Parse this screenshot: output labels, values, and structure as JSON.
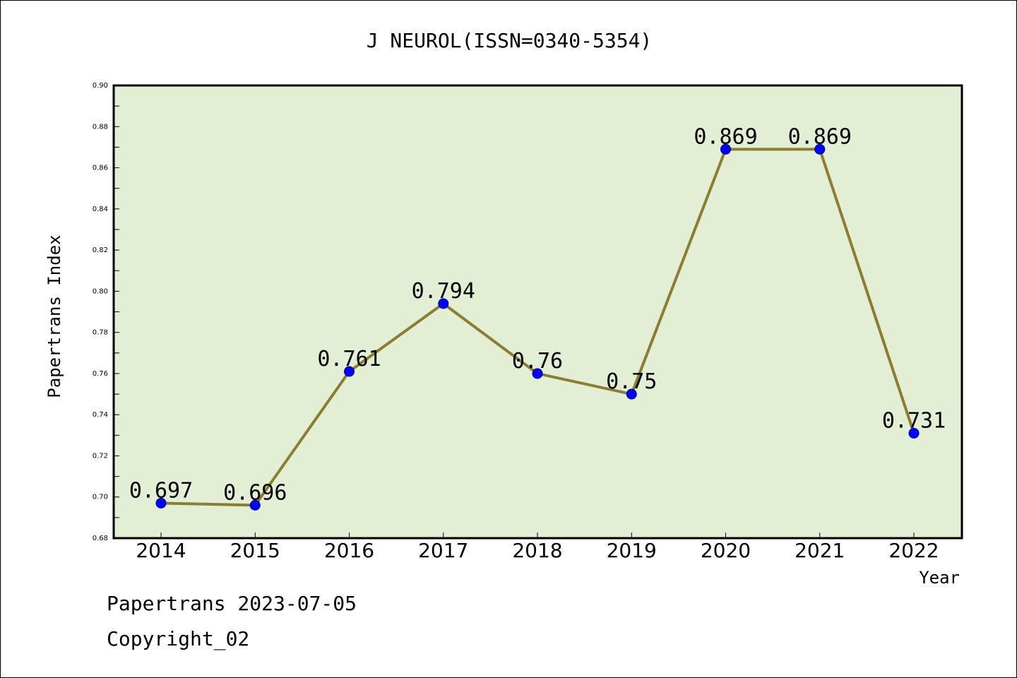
{
  "chart_data": {
    "type": "line",
    "title": "J NEUROL(ISSN=0340-5354)",
    "xlabel": "Year",
    "ylabel": "Papertrans Index",
    "categories": [
      "2014",
      "2015",
      "2016",
      "2017",
      "2018",
      "2019",
      "2020",
      "2021",
      "2022"
    ],
    "series": [
      {
        "values": [
          0.697,
          0.696,
          0.761,
          0.794,
          0.76,
          0.75,
          0.869,
          0.869,
          0.731
        ],
        "data_labels": [
          "0.697",
          "0.696",
          "0.761",
          "0.794",
          "0.76",
          "0.75",
          "0.869",
          "0.869",
          "0.731"
        ],
        "line_color": "#8b7d32",
        "marker_color": "#0000ff"
      }
    ],
    "ylim": [
      0.68,
      0.9
    ],
    "yticks": [
      "0.68",
      "0.70",
      "0.72",
      "0.74",
      "0.76",
      "0.78",
      "0.80",
      "0.82",
      "0.84",
      "0.86",
      "0.88",
      "0.90"
    ],
    "grid": false,
    "legend": "none",
    "plot_background": "#e2efd5"
  },
  "footer": {
    "line1": "Papertrans 2023-07-05",
    "line2": "Copyright_02"
  }
}
